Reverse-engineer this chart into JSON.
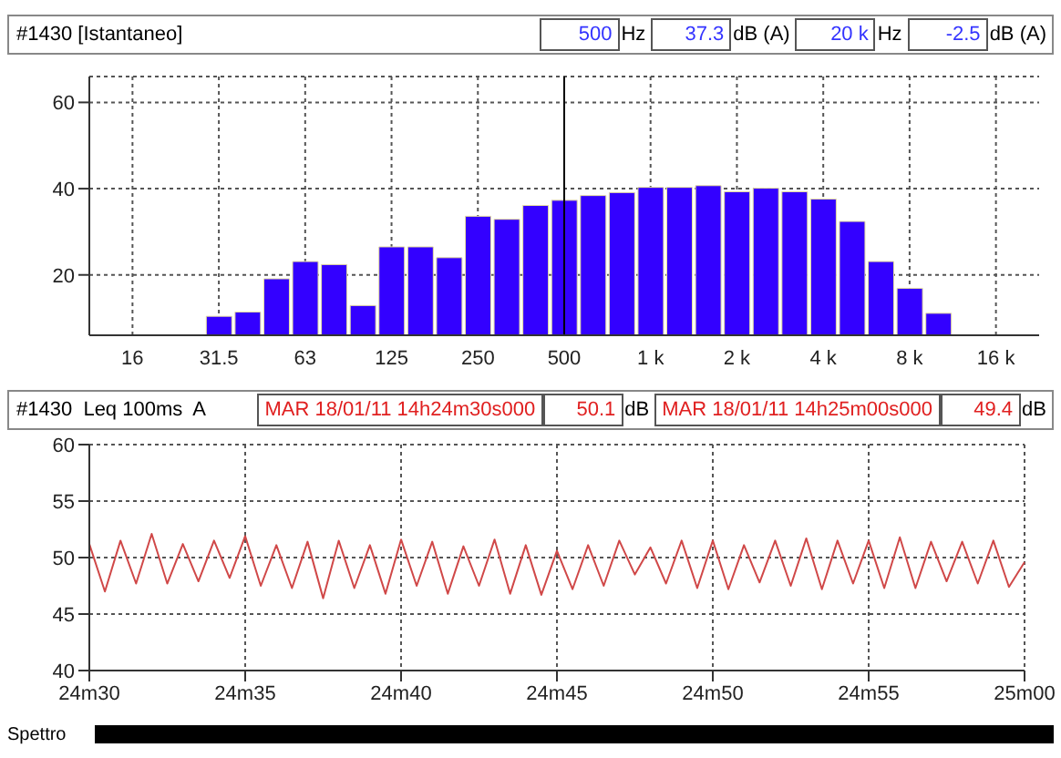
{
  "chart_data": [
    {
      "type": "bar",
      "title": "#1430 [Istantaneo]",
      "annotations": [
        "500",
        "Hz",
        "37.3",
        "dB (A)",
        "20 k",
        "Hz",
        "-2.5",
        "dB (A)"
      ],
      "categories": [
        null,
        "16",
        null,
        null,
        "31.5",
        null,
        null,
        "63",
        null,
        null,
        "125",
        null,
        null,
        "250",
        null,
        null,
        "500",
        null,
        null,
        "1 k",
        null,
        null,
        "2 k",
        null,
        null,
        "4 k",
        null,
        null,
        "8 k",
        null,
        null,
        "16 k",
        null
      ],
      "values": [
        null,
        null,
        null,
        null,
        10.4,
        11.4,
        19.1,
        23.1,
        22.4,
        12.9,
        26.5,
        26.5,
        24,
        33.6,
        32.9,
        36.1,
        37.3,
        38.4,
        39.1,
        40.3,
        40.3,
        40.7,
        39.3,
        40.1,
        39.3,
        37.6,
        32.4,
        23.1,
        16.9,
        11.1,
        null,
        null,
        null
      ],
      "color": "#3300ff",
      "ylim": [
        6,
        66
      ],
      "yticks": [
        20,
        40,
        60
      ],
      "grid": true,
      "ref_lines": [
        {
          "axis": "x",
          "value": "500",
          "color": "#000000"
        }
      ]
    },
    {
      "type": "line",
      "title": "#1430  Leq 100ms  A",
      "annotations": [
        "MAR 18/01/11 14h24m30s000",
        "50.1",
        "dB",
        "MAR 18/01/11 14h25m00s000",
        "49.4",
        "dB",
        "Spettro"
      ],
      "categories": [
        "24m30",
        null,
        null,
        null,
        null,
        null,
        null,
        null,
        null,
        null,
        "24m35",
        null,
        null,
        null,
        null,
        null,
        null,
        null,
        null,
        null,
        "24m40",
        null,
        null,
        null,
        null,
        null,
        null,
        null,
        null,
        null,
        "24m45",
        null,
        null,
        null,
        null,
        null,
        null,
        null,
        null,
        null,
        "24m50",
        null,
        null,
        null,
        null,
        null,
        null,
        null,
        null,
        null,
        "24m55",
        null,
        null,
        null,
        null,
        null,
        null,
        null,
        null,
        null,
        "25m00"
      ],
      "series": [
        {
          "color": "#d04848",
          "values": [
            51.2,
            47.0,
            51.5,
            47.7,
            52.1,
            47.7,
            51.2,
            47.9,
            51.5,
            48.2,
            51.9,
            47.5,
            51.1,
            47.3,
            51.4,
            46.4,
            51.5,
            47.3,
            51.1,
            46.8,
            51.6,
            47.5,
            51.4,
            46.8,
            51.0,
            47.5,
            51.6,
            46.8,
            51.1,
            46.7,
            50.6,
            47.2,
            51.1,
            47.5,
            51.5,
            48.5,
            50.9,
            47.7,
            51.5,
            47.3,
            51.5,
            47.2,
            51.1,
            47.8,
            51.5,
            47.5,
            51.7,
            47.2,
            51.5,
            47.7,
            51.5,
            47.3,
            51.8,
            47.3,
            51.4,
            47.9,
            51.4,
            47.7,
            51.5,
            47.4,
            49.6
          ]
        }
      ],
      "ylim": [
        40,
        60
      ],
      "yticks": [
        40,
        45,
        50,
        55,
        60
      ],
      "grid": true,
      "marker": "none",
      "line_style": "solid"
    }
  ]
}
